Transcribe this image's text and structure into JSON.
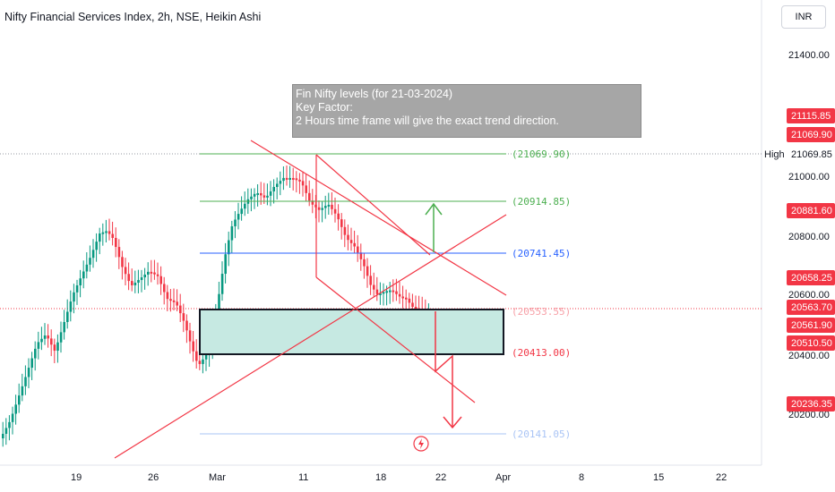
{
  "header": {
    "title": "Nifty Financial Services Index, 2h, NSE, Heikin Ashi",
    "currency": "INR"
  },
  "note": {
    "line1": "Fin Nifty levels (for 21-03-2024)",
    "line2": "Key Factor:",
    "line3": "2 Hours time frame will give the exact trend direction."
  },
  "price_axis": {
    "ticks": [
      "21400.00",
      "21000.00",
      "20800.00",
      "20600.00",
      "20400.00",
      "20200.00"
    ],
    "high_label": "High",
    "badges": [
      {
        "value": "21115.85",
        "color": "#f23645"
      },
      {
        "value": "21069.90",
        "color": "#f23645"
      },
      {
        "value": "21069.85",
        "color": "#ffffff",
        "text_color": "#131722"
      },
      {
        "value": "20881.60",
        "color": "#f23645"
      },
      {
        "value": "20658.25",
        "color": "#f23645"
      },
      {
        "value": "20563.70",
        "color": "#f23645"
      },
      {
        "value": "20561.90",
        "color": "#f23645"
      },
      {
        "value": "20510.50",
        "color": "#f23645"
      },
      {
        "value": "20236.35",
        "color": "#f23645"
      }
    ]
  },
  "time_axis": {
    "ticks": [
      "19",
      "26",
      "Mar",
      "11",
      "18",
      "22",
      "Apr",
      "8",
      "15",
      "22"
    ]
  },
  "levels": [
    {
      "label": "(21069.90)",
      "color": "#4caf50"
    },
    {
      "label": "(20914.85)",
      "color": "#4caf50"
    },
    {
      "label": "(20741.45)",
      "color": "#2962ff"
    },
    {
      "label": "(20553.55)",
      "color": "#f7a0a7"
    },
    {
      "label": "(20413.00)",
      "color": "#f23645"
    },
    {
      "label": "(20141.05)",
      "color": "#a9c4f5"
    }
  ],
  "colors": {
    "up": "#089981",
    "down": "#f23645",
    "zone_fill": "#c6e9e2",
    "trendline": "#f23645"
  },
  "icons": {
    "event": "lightning-icon"
  }
}
